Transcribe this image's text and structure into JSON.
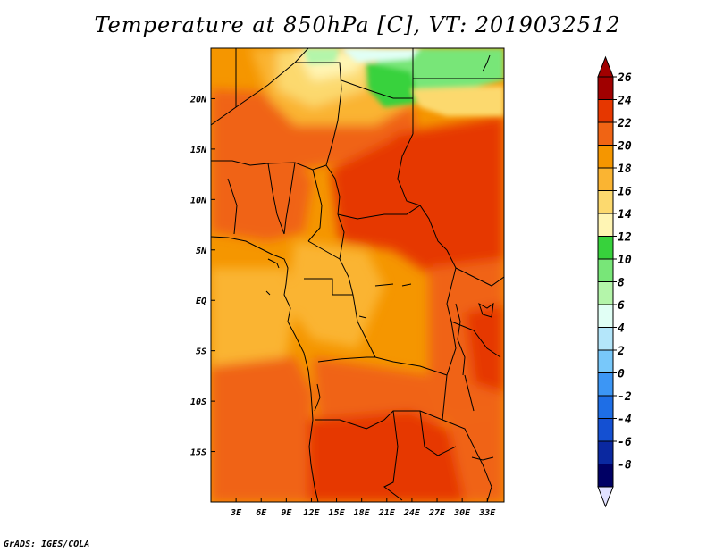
{
  "title": "Temperature at 850hPa [C], VT: 2019032512",
  "credit": "GrADS: IGES/COLA",
  "map": {
    "lon_range": [
      0,
      35
    ],
    "lat_range": [
      -20,
      25
    ],
    "lon_ticks": [
      {
        "value": 3,
        "label": "3E"
      },
      {
        "value": 6,
        "label": "6E"
      },
      {
        "value": 9,
        "label": "9E"
      },
      {
        "value": 12,
        "label": "12E"
      },
      {
        "value": 15,
        "label": "15E"
      },
      {
        "value": 18,
        "label": "18E"
      },
      {
        "value": 21,
        "label": "21E"
      },
      {
        "value": 24,
        "label": "24E"
      },
      {
        "value": 27,
        "label": "27E"
      },
      {
        "value": 30,
        "label": "30E"
      },
      {
        "value": 33,
        "label": "33E"
      }
    ],
    "lat_ticks": [
      {
        "value": 20,
        "label": "20N"
      },
      {
        "value": 15,
        "label": "15N"
      },
      {
        "value": 10,
        "label": "10N"
      },
      {
        "value": 5,
        "label": "5N"
      },
      {
        "value": 0,
        "label": "EQ"
      },
      {
        "value": -5,
        "label": "5S"
      },
      {
        "value": -10,
        "label": "10S"
      },
      {
        "value": -15,
        "label": "15S"
      }
    ]
  },
  "colorbar": {
    "levels": [
      {
        "label": "26",
        "color": "#a00000"
      },
      {
        "label": "24",
        "color": "#e63700"
      },
      {
        "label": "22",
        "color": "#f06414"
      },
      {
        "label": "20",
        "color": "#f59600"
      },
      {
        "label": "18",
        "color": "#fab432"
      },
      {
        "label": "16",
        "color": "#fcd96e"
      },
      {
        "label": "14",
        "color": "#fff5b4"
      },
      {
        "label": "12",
        "color": "#37d23c"
      },
      {
        "label": "10",
        "color": "#78e678"
      },
      {
        "label": "8",
        "color": "#b4f5aa"
      },
      {
        "label": "6",
        "color": "#e1fff5"
      },
      {
        "label": "4",
        "color": "#b4e6fa"
      },
      {
        "label": "2",
        "color": "#78c8fa"
      },
      {
        "label": "0",
        "color": "#3c96f5"
      },
      {
        "label": "-2",
        "color": "#1e6ee6"
      },
      {
        "label": "-4",
        "color": "#1450d2"
      },
      {
        "label": "-6",
        "color": "#0a28a0"
      },
      {
        "label": "-8",
        "color": "#000064"
      }
    ],
    "below_color": "#e1e1ff"
  }
}
